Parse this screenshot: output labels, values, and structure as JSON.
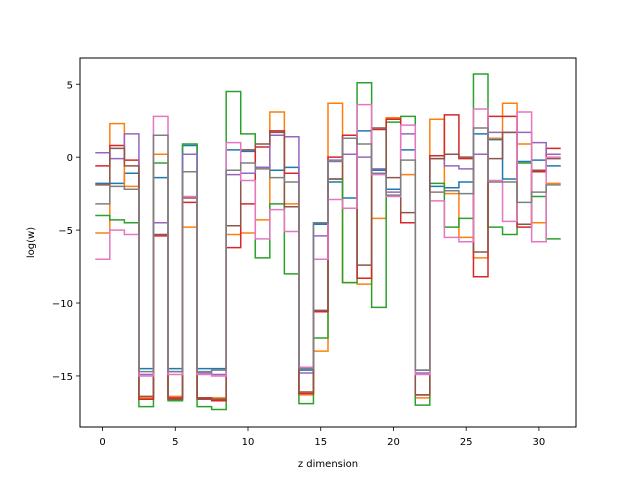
{
  "chart_data": {
    "type": "line",
    "drawstyle": "steps-mid",
    "title": "",
    "xlabel": "z dimension",
    "ylabel": "log(w)",
    "xlim": [
      -1.55,
      32.55
    ],
    "ylim": [
      -18.5,
      6.8
    ],
    "xticks": [
      0,
      5,
      10,
      15,
      20,
      25,
      30
    ],
    "yticks": [
      5,
      0,
      -5,
      -10,
      -15
    ],
    "grid": false,
    "legend": "none",
    "x": [
      0,
      1,
      2,
      3,
      4,
      5,
      6,
      7,
      8,
      9,
      10,
      11,
      12,
      13,
      14,
      15,
      16,
      17,
      18,
      19,
      20,
      21,
      22,
      23,
      24,
      25,
      26,
      27,
      28,
      29,
      30,
      31
    ],
    "series": [
      {
        "color": "#1f77b4",
        "values": [
          -1.8,
          -1.8,
          -1.1,
          -14.5,
          -1.4,
          -14.5,
          0.8,
          -14.5,
          -14.5,
          0.5,
          0.4,
          -0.7,
          -0.9,
          -0.7,
          -14.6,
          -4.6,
          -1.7,
          -2.8,
          1.8,
          -0.9,
          -2.2,
          0.5,
          -14.6,
          -2.0,
          -2.1,
          -1.7,
          1.6,
          1.2,
          -1.5,
          -0.3,
          -0.2,
          -0.6
        ]
      },
      {
        "color": "#ff7f0e",
        "values": [
          -5.2,
          2.3,
          -2.0,
          -16.5,
          0.2,
          -16.4,
          -4.8,
          -16.5,
          -16.5,
          -5.3,
          -5.2,
          -4.3,
          3.1,
          -3.2,
          -16.3,
          -13.3,
          3.7,
          -8.6,
          -8.7,
          -4.2,
          2.7,
          -1.2,
          -16.5,
          2.6,
          -2.5,
          -5.5,
          -6.9,
          1.3,
          3.7,
          0.9,
          -4.5,
          -1.8
        ]
      },
      {
        "color": "#2ca02c",
        "values": [
          -4.0,
          -4.3,
          -4.5,
          -17.1,
          -0.4,
          -16.7,
          0.9,
          -17.1,
          -17.3,
          4.5,
          1.6,
          -6.9,
          -3.2,
          -8.0,
          -16.9,
          -12.4,
          -1.5,
          -8.6,
          5.1,
          -10.3,
          2.4,
          2.8,
          -17.0,
          -1.8,
          -4.8,
          -4.2,
          5.7,
          -4.8,
          -5.3,
          -0.4,
          -2.7,
          -5.6
        ]
      },
      {
        "color": "#d62728",
        "values": [
          -0.6,
          0.8,
          -0.2,
          -16.6,
          -5.4,
          -16.5,
          -3.1,
          -16.5,
          -16.7,
          -6.2,
          -3.2,
          0.7,
          1.8,
          -1.1,
          -16.2,
          -10.6,
          0.0,
          1.5,
          -8.3,
          1.9,
          2.6,
          -4.5,
          -16.3,
          0.1,
          2.9,
          -0.1,
          -8.2,
          2.8,
          2.8,
          -4.8,
          -1.0,
          0.6
        ]
      },
      {
        "color": "#9467bd",
        "values": [
          0.3,
          -0.1,
          1.6,
          -14.9,
          -4.5,
          -14.7,
          0.2,
          -14.8,
          -14.9,
          -1.2,
          -1.1,
          -0.7,
          1.5,
          1.4,
          -14.8,
          -5.4,
          -0.2,
          0.2,
          0.0,
          -0.8,
          -2.4,
          1.6,
          -14.8,
          -0.1,
          -0.6,
          -0.8,
          0.2,
          1.7,
          1.7,
          1.7,
          1.0,
          0.2
        ]
      },
      {
        "color": "#8c564b",
        "values": [
          -1.9,
          0.6,
          -0.6,
          -16.4,
          -5.3,
          -16.6,
          -2.8,
          -16.6,
          -16.6,
          -4.7,
          0.5,
          0.9,
          1.7,
          -3.4,
          -16.1,
          -10.5,
          -1.5,
          1.3,
          -7.4,
          2.0,
          -1.4,
          -3.8,
          -16.3,
          -0.1,
          0.2,
          0.0,
          -6.5,
          -0.1,
          1.7,
          -4.6,
          -0.9,
          -0.1
        ]
      },
      {
        "color": "#e377c2",
        "values": [
          -7.0,
          -5.0,
          -5.3,
          -15.0,
          2.8,
          -14.9,
          -2.7,
          -14.9,
          -15.0,
          1.0,
          -1.6,
          -5.6,
          -3.6,
          -5.1,
          -14.4,
          -7.0,
          -2.9,
          -3.5,
          3.6,
          -1.2,
          -2.7,
          2.2,
          -14.9,
          -3.0,
          -5.5,
          -5.8,
          3.3,
          -1.6,
          -4.4,
          3.1,
          -5.8,
          0.0
        ]
      },
      {
        "color": "#7f7f7f",
        "values": [
          -3.2,
          -2.0,
          -2.2,
          -14.7,
          1.5,
          -14.7,
          -1.0,
          -14.7,
          -14.6,
          -0.9,
          -0.4,
          -0.8,
          -1.4,
          -1.7,
          -14.5,
          -4.5,
          -0.3,
          1.3,
          0.9,
          -1.1,
          -2.6,
          -0.2,
          -14.6,
          -2.4,
          -2.3,
          -2.5,
          2.0,
          -1.7,
          -1.7,
          -3.1,
          -2.4,
          -1.9
        ]
      }
    ]
  }
}
